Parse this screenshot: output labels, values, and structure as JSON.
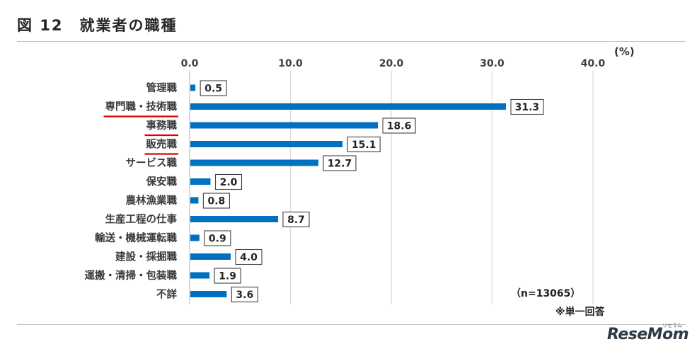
{
  "figure": {
    "title": "図 12　就業者の職種",
    "unit": "(%)",
    "sample_note": "（n=13065）",
    "answer_note": "※単一回答",
    "logo": "ReseMom",
    "logo_sub": "リセマム"
  },
  "chart_data": {
    "type": "bar",
    "orientation": "horizontal",
    "categories": [
      "管理職",
      "専門職・技術職",
      "事務職",
      "販売職",
      "サービス職",
      "保安職",
      "農林漁業職",
      "生産工程の仕事",
      "輸送・機械運転職",
      "建設・採掘職",
      "運搬・清掃・包装職",
      "不詳"
    ],
    "values": [
      0.5,
      31.3,
      18.6,
      15.1,
      12.7,
      2.0,
      0.8,
      8.7,
      0.9,
      4.0,
      1.9,
      3.6
    ],
    "data_labels": [
      "0.5",
      "31.3",
      "18.6",
      "15.1",
      "12.7",
      "2.0",
      "0.8",
      "8.7",
      "0.9",
      "4.0",
      "1.9",
      "3.6"
    ],
    "x_ticks": [
      "0.0",
      "10.0",
      "20.0",
      "30.0",
      "40.0"
    ],
    "x_tick_values": [
      0,
      10,
      20,
      30,
      40
    ],
    "xlim": [
      0,
      40
    ],
    "grid": "vertical",
    "underlined_categories": [
      "専門職・技術職",
      "事務職",
      "販売職"
    ],
    "colors": {
      "bar": "#0070c0",
      "underline": "#e00000",
      "grid": "#d9d9d9"
    }
  }
}
